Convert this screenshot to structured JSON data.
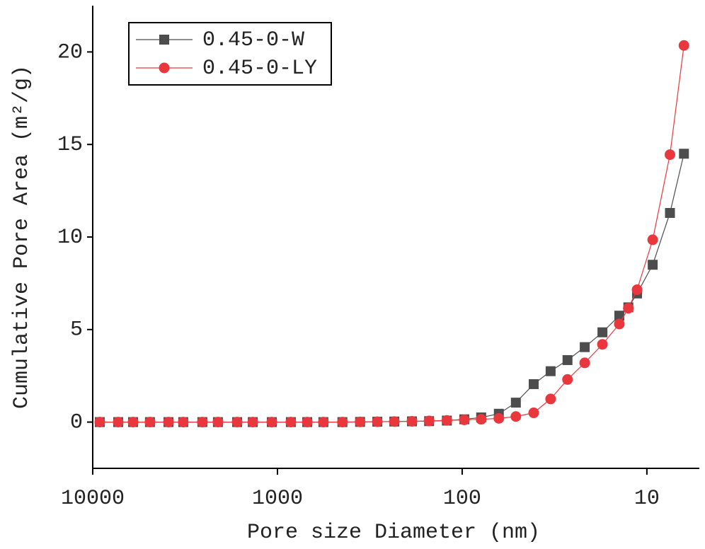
{
  "chart_data": {
    "type": "line",
    "x_label": "Pore size Diameter (nm)",
    "y_label": "Cumulative Pore Area (m²/g)",
    "x": [
      9160,
      7280,
      6050,
      4900,
      3890,
      3236,
      2550,
      2100,
      1653,
      1360,
      1073,
      846,
      690,
      564,
      445,
      357,
      288,
      233,
      187,
      151,
      121,
      97.4,
      78.9,
      63.3,
      51.2,
      41.0,
      33.2,
      26.9,
      21.7,
      17.4,
      14.1,
      12.6,
      11.3,
      9.3,
      7.5,
      6.3
    ],
    "series": [
      {
        "name": "0.45-0-W",
        "color": "#4d4d4d",
        "marker": "square",
        "values": [
          0,
          0,
          0,
          0,
          0,
          0,
          0,
          0,
          0,
          0,
          0,
          0,
          0,
          0,
          0,
          0.01,
          0.02,
          0.03,
          0.04,
          0.05,
          0.08,
          0.15,
          0.25,
          0.45,
          1.05,
          2.05,
          2.75,
          3.35,
          4.05,
          4.85,
          5.75,
          6.2,
          6.95,
          8.5,
          11.3,
          14.5
        ]
      },
      {
        "name": "0.45-0-LY",
        "color": "#e8383d",
        "marker": "circle",
        "values": [
          0,
          0,
          0,
          0,
          0,
          0,
          0,
          0,
          0,
          0,
          0,
          0,
          0,
          0,
          0,
          0.01,
          0.02,
          0.03,
          0.04,
          0.06,
          0.09,
          0.12,
          0.15,
          0.2,
          0.3,
          0.5,
          1.25,
          2.3,
          3.2,
          4.2,
          5.3,
          6.15,
          7.15,
          9.85,
          14.45,
          20.35
        ]
      }
    ],
    "xscale": "log",
    "xlim": [
      10000,
      5.2
    ],
    "xticks": [
      10000,
      1000,
      100,
      10
    ],
    "ylim": [
      -2.5,
      22.5
    ],
    "yticks": [
      0,
      5,
      10,
      15,
      20
    ],
    "legend": "upper left"
  }
}
